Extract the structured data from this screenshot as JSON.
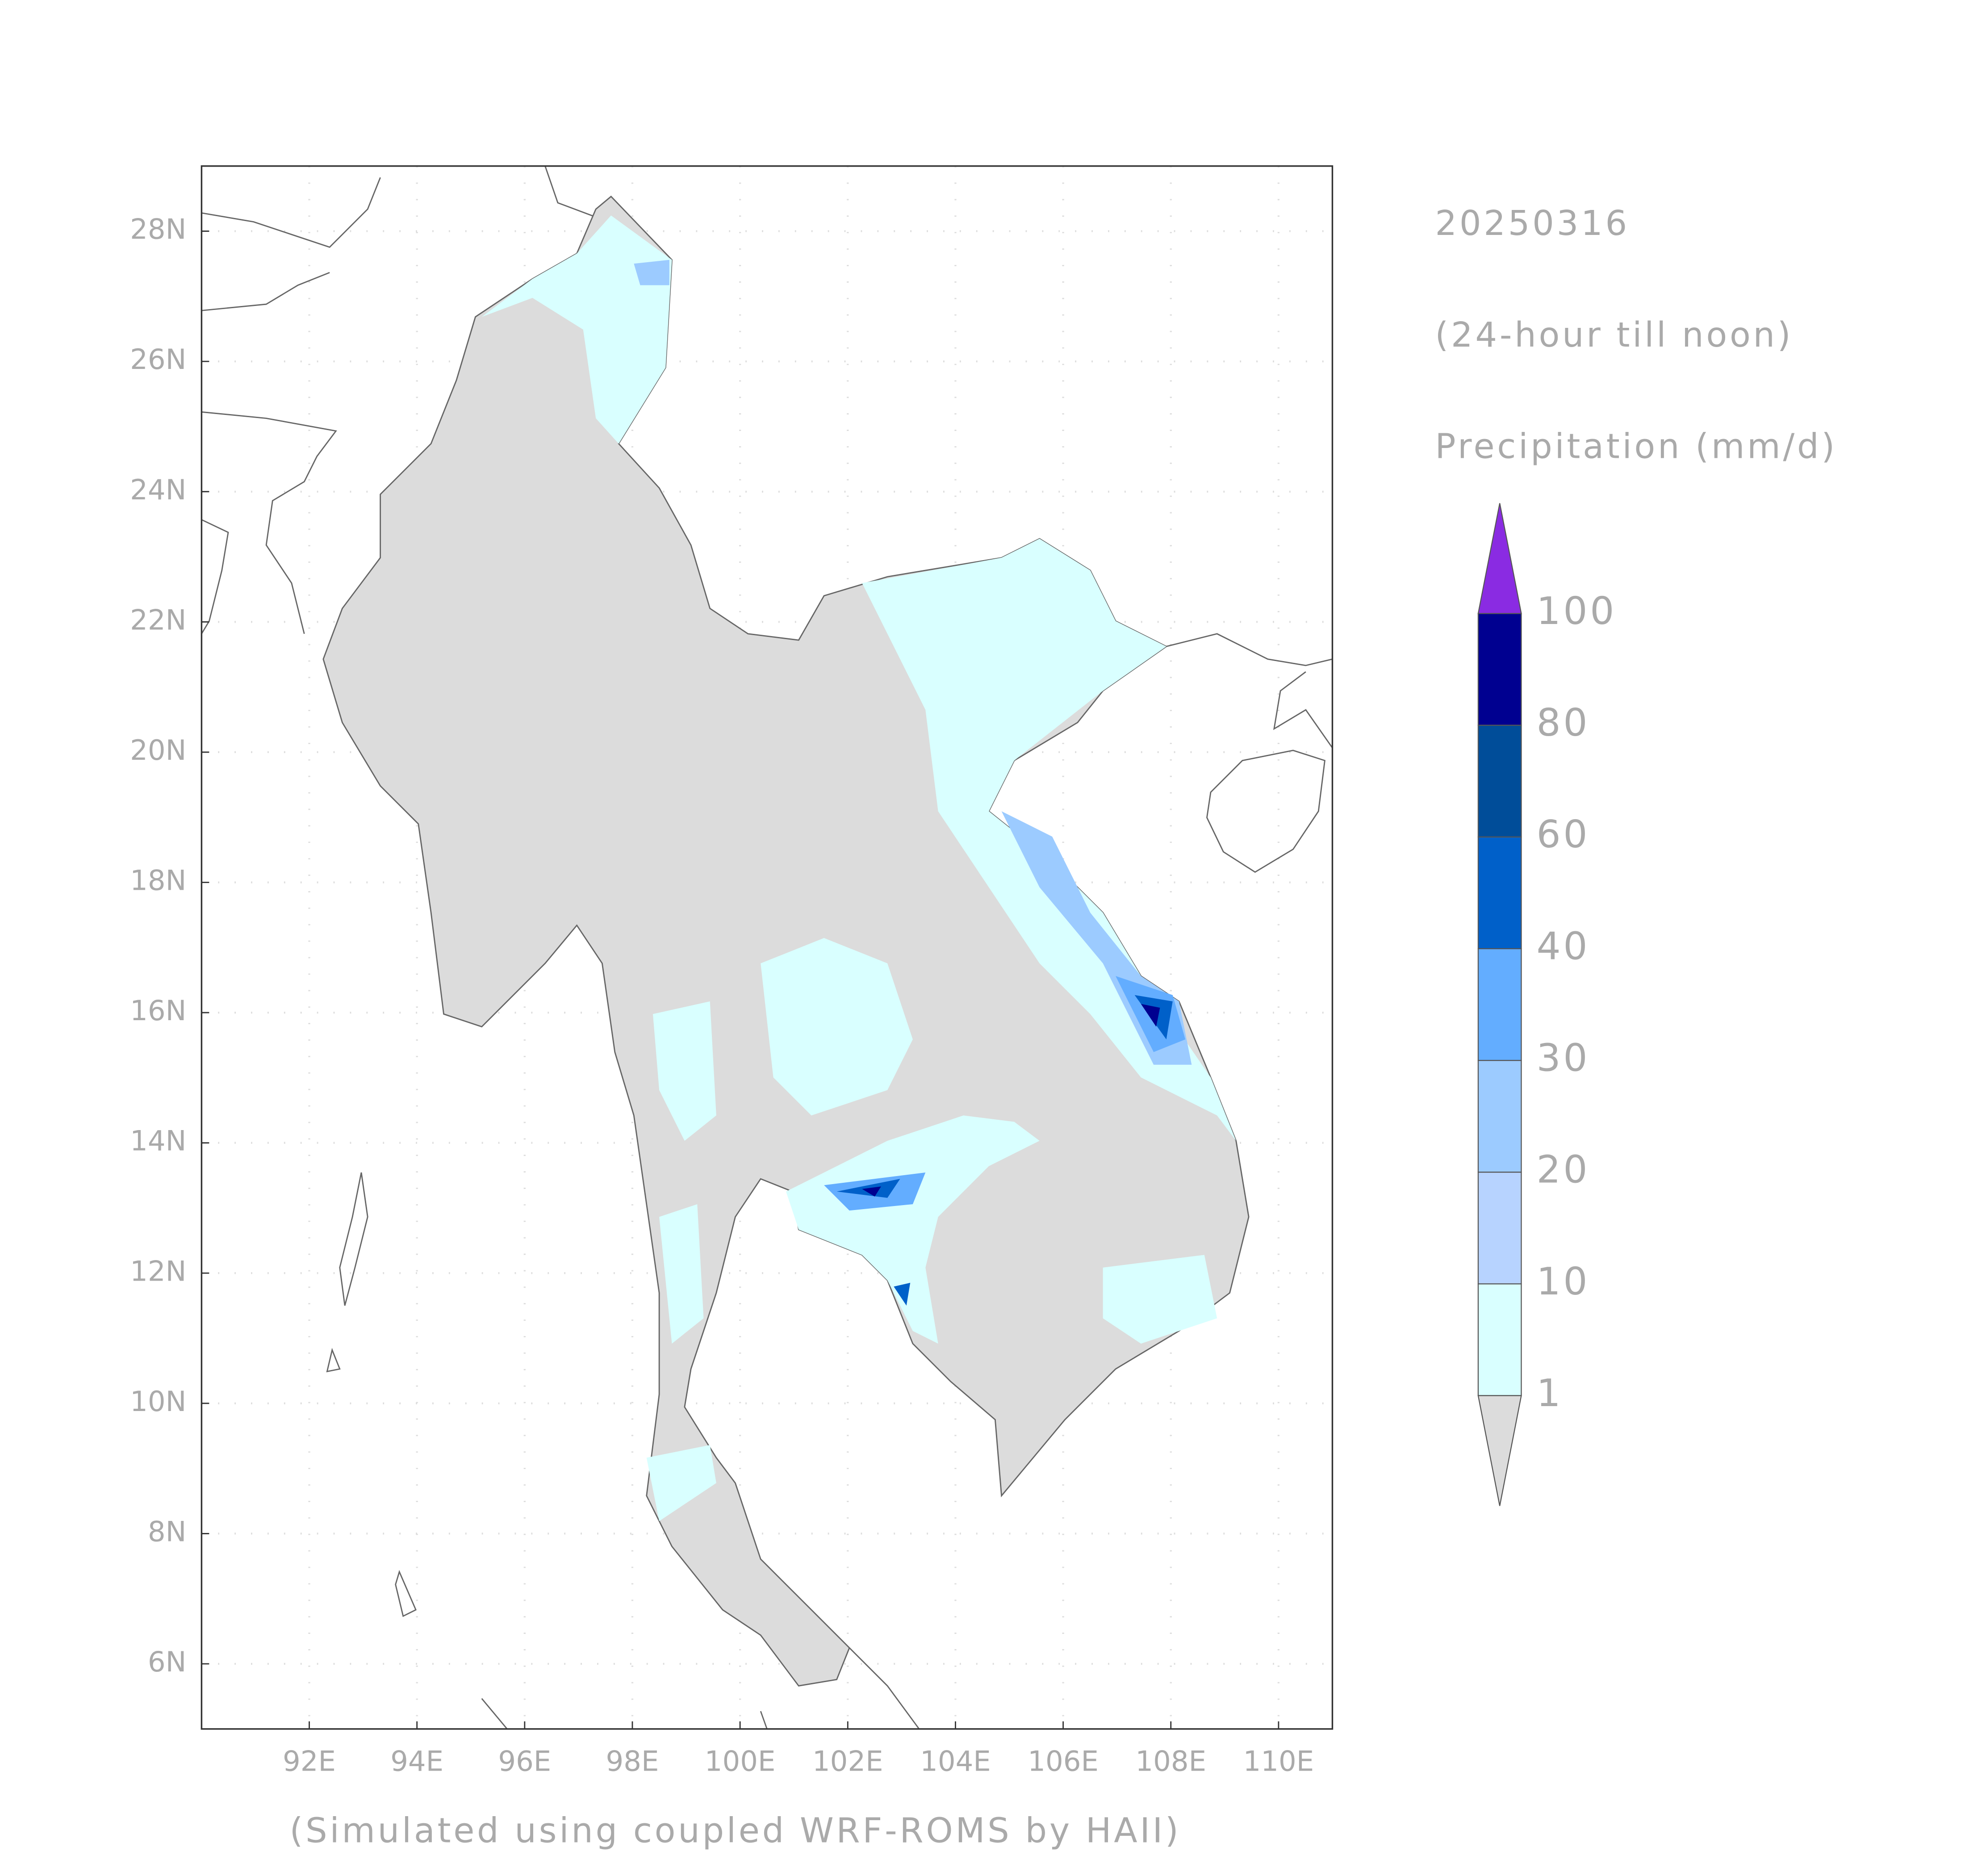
{
  "map": {
    "date": "20250316",
    "subtitle": "(24-hour till noon)",
    "title": "Precipitation (mm/d)",
    "footer": "(Simulated using coupled WRF-ROMS by HAII)",
    "xlim": [
      90,
      111
    ],
    "ylim": [
      5,
      29
    ],
    "grid": true,
    "xticks": [
      {
        "value": 92,
        "label": "92E"
      },
      {
        "value": 94,
        "label": "94E"
      },
      {
        "value": 96,
        "label": "96E"
      },
      {
        "value": 98,
        "label": "98E"
      },
      {
        "value": 100,
        "label": "100E"
      },
      {
        "value": 102,
        "label": "102E"
      },
      {
        "value": 104,
        "label": "104E"
      },
      {
        "value": 106,
        "label": "106E"
      },
      {
        "value": 108,
        "label": "108E"
      },
      {
        "value": 110,
        "label": "110E"
      }
    ],
    "yticks": [
      {
        "value": 6,
        "label": "6N"
      },
      {
        "value": 8,
        "label": "8N"
      },
      {
        "value": 10,
        "label": "10N"
      },
      {
        "value": 12,
        "label": "12N"
      },
      {
        "value": 14,
        "label": "14N"
      },
      {
        "value": 16,
        "label": "16N"
      },
      {
        "value": 18,
        "label": "18N"
      },
      {
        "value": 20,
        "label": "20N"
      },
      {
        "value": 22,
        "label": "22N"
      },
      {
        "value": 24,
        "label": "24N"
      },
      {
        "value": 26,
        "label": "26N"
      },
      {
        "value": 28,
        "label": "28N"
      }
    ],
    "colorbar": {
      "levels": [
        1,
        10,
        20,
        30,
        40,
        60,
        80,
        100
      ],
      "colors": [
        "#dcdcdc",
        "#d9ffff",
        "#b7d3ff",
        "#9ccbff",
        "#63adff",
        "#0060c9",
        "#004d99",
        "#000090",
        "#8a2be2"
      ],
      "extend": "both"
    }
  }
}
